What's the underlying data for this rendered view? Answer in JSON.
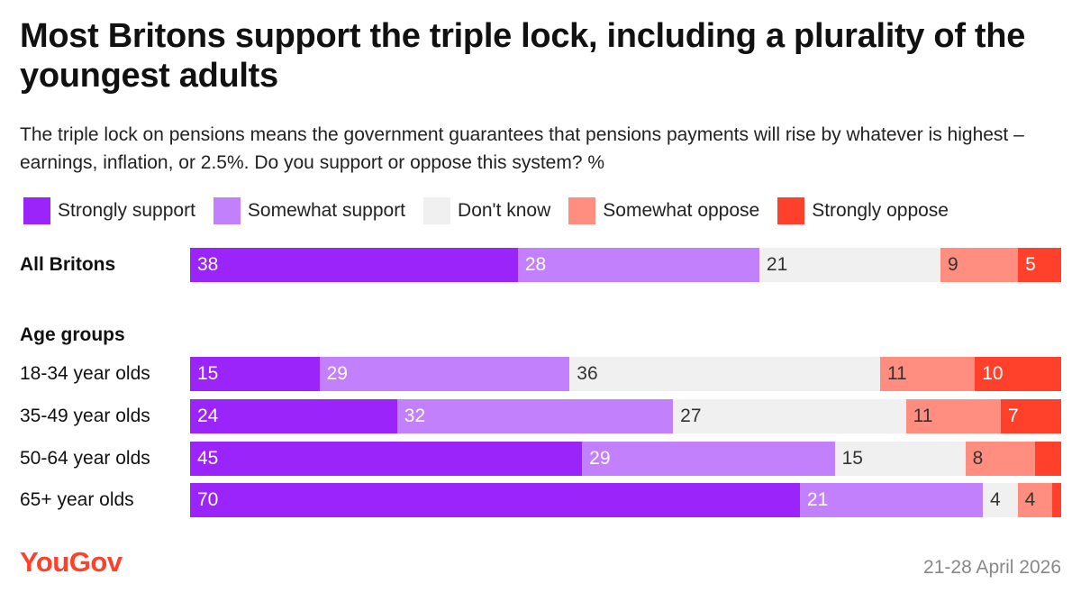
{
  "header": {
    "title": "Most Britons support the triple lock, including a plurality of the youngest adults",
    "subtitle": "The triple lock on pensions means the government guarantees that pensions payments will rise by whatever is highest – earnings, inflation, or 2.5%. Do you support or oppose this system? %"
  },
  "legend": [
    {
      "label": "Strongly support",
      "color": "#9b24fb"
    },
    {
      "label": "Somewhat support",
      "color": "#c380fd"
    },
    {
      "label": "Don't know",
      "color": "#f0f0f0"
    },
    {
      "label": "Somewhat oppose",
      "color": "#ff8e80"
    },
    {
      "label": "Strongly oppose",
      "color": "#ff412c"
    }
  ],
  "group_heading": "Age groups",
  "footer": {
    "brand": "YouGov",
    "date": "21-28 April 2026"
  },
  "chart_data": {
    "type": "bar",
    "orientation": "horizontal",
    "stacked": true,
    "categories": [
      "All Britons",
      "18-34 year olds",
      "35-49 year olds",
      "50-64 year olds",
      "65+ year olds"
    ],
    "series": [
      {
        "name": "Strongly support",
        "values": [
          38,
          15,
          24,
          45,
          70
        ],
        "labels": [
          "38",
          "15",
          "24",
          "45",
          "70"
        ],
        "color": "#9b24fb"
      },
      {
        "name": "Somewhat support",
        "values": [
          28,
          29,
          32,
          29,
          21
        ],
        "labels": [
          "28",
          "29",
          "32",
          "29",
          "21"
        ],
        "color": "#c380fd"
      },
      {
        "name": "Don't know",
        "values": [
          21,
          36,
          27,
          15,
          4
        ],
        "labels": [
          "21",
          "36",
          "27",
          "15",
          "4"
        ],
        "color": "#f0f0f0"
      },
      {
        "name": "Somewhat oppose",
        "values": [
          9,
          11,
          11,
          8,
          4
        ],
        "labels": [
          "9",
          "11",
          "11",
          "8",
          "4"
        ],
        "color": "#ff8e80"
      },
      {
        "name": "Strongly oppose",
        "values": [
          5,
          10,
          7,
          3,
          1
        ],
        "labels": [
          "5",
          "10",
          "7",
          "",
          ""
        ],
        "color": "#ff412c"
      }
    ],
    "xlim": [
      0,
      100
    ],
    "legend_position": "top",
    "grid": false
  }
}
